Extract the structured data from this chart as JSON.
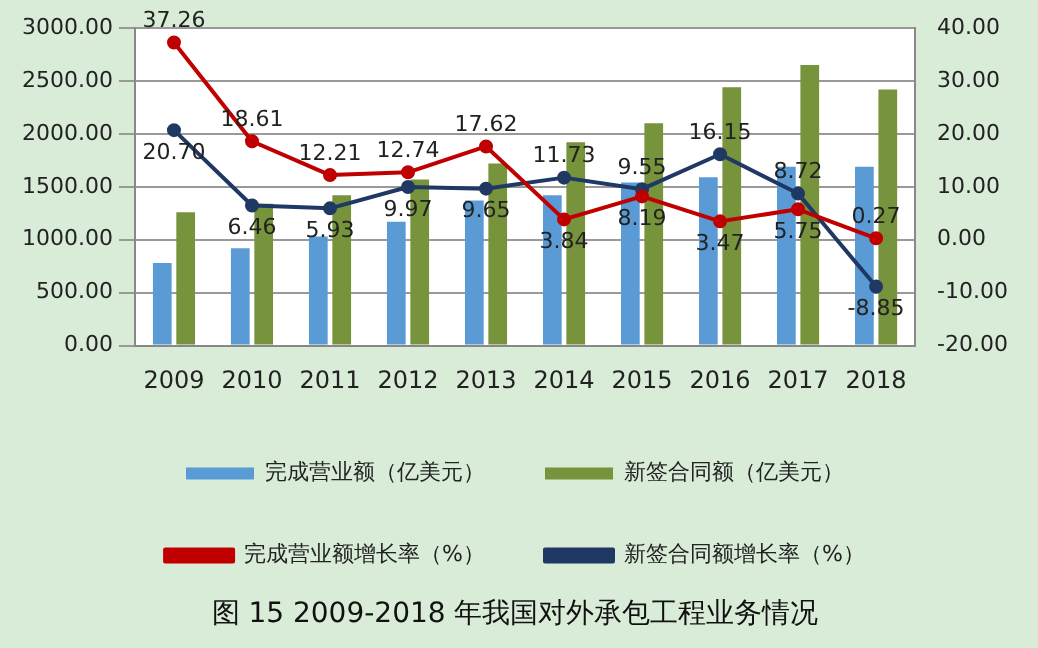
{
  "chart_data": {
    "type": "bar",
    "title": "图 15 2009-2018 年我国对外承包工程业务情况",
    "categories": [
      "2009",
      "2010",
      "2011",
      "2012",
      "2013",
      "2014",
      "2015",
      "2016",
      "2017",
      "2018"
    ],
    "series": [
      {
        "name": "完成营业额（亿美元）",
        "color": "#5b9bd5",
        "values": [
          780,
          920,
          1030,
          1170,
          1370,
          1420,
          1540,
          1590,
          1690,
          1690
        ]
      },
      {
        "name": "新签合同额（亿美元）",
        "color": "#77933c",
        "values": [
          1260,
          1340,
          1420,
          1570,
          1720,
          1920,
          2100,
          2440,
          2650,
          2420
        ]
      },
      {
        "name": "完成营业额增长率（%）",
        "type": "line",
        "axis": "y2",
        "color": "#c00000",
        "values": [
          37.26,
          18.61,
          12.21,
          12.74,
          17.62,
          3.84,
          8.19,
          3.47,
          5.75,
          0.27
        ],
        "value_labels": [
          "37.26",
          "18.61",
          "12.21",
          "12.74",
          "17.62",
          "3.84",
          "8.19",
          "3.47",
          "5.75",
          "0.27"
        ]
      },
      {
        "name": "新签合同额增长率（%）",
        "type": "line",
        "axis": "y2",
        "color": "#1f3864",
        "values": [
          20.7,
          6.46,
          5.93,
          9.97,
          9.65,
          11.73,
          9.55,
          16.15,
          8.72,
          -8.85
        ],
        "value_labels": [
          "20.70",
          "6.46",
          "5.93",
          "9.97",
          "9.65",
          "11.73",
          "9.55",
          "16.15",
          "8.72",
          "-8.85"
        ]
      }
    ],
    "ylim": [
      0,
      3000
    ],
    "yticks": [
      {
        "value": 0,
        "label": "0.00"
      },
      {
        "value": 500,
        "label": "500.00"
      },
      {
        "value": 1000,
        "label": "1000.00"
      },
      {
        "value": 1500,
        "label": "1500.00"
      },
      {
        "value": 2000,
        "label": "2000.00"
      },
      {
        "value": 2500,
        "label": "2500.00"
      },
      {
        "value": 3000,
        "label": "3000.00"
      }
    ],
    "y2lim": [
      -20,
      40
    ],
    "y2ticks": [
      {
        "value": -20,
        "label": "-20.00"
      },
      {
        "value": -10,
        "label": "-10.00"
      },
      {
        "value": 0,
        "label": "0.00"
      },
      {
        "value": 10,
        "label": "10.00"
      },
      {
        "value": 20,
        "label": "20.00"
      },
      {
        "value": 30,
        "label": "30.00"
      },
      {
        "value": 40,
        "label": "40.00"
      }
    ],
    "grid": "y",
    "legend": "bottom",
    "marker": "circle",
    "line_style": "solid"
  }
}
